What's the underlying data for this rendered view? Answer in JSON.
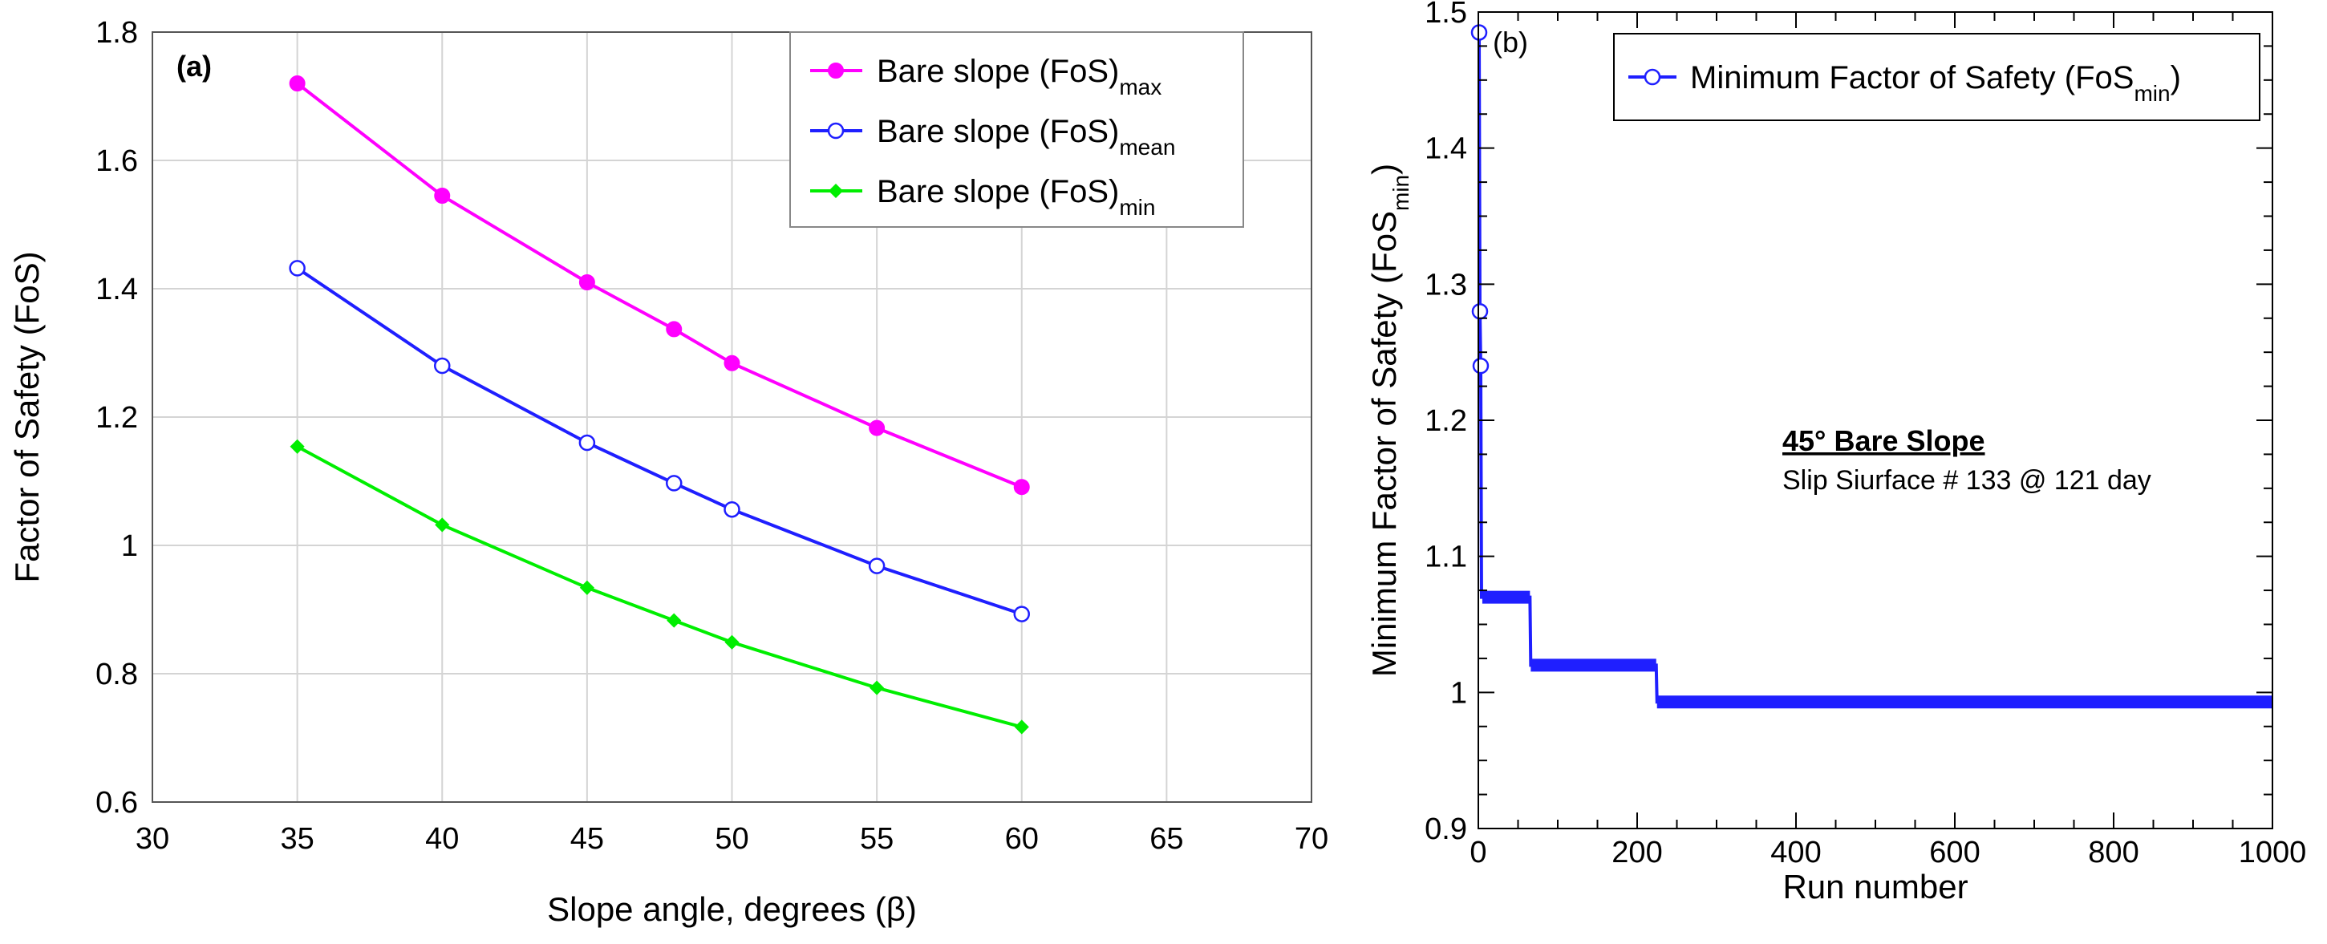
{
  "chart_data": [
    {
      "type": "line",
      "panel_label": "(a)",
      "xlabel": "Slope angle, degrees (β)",
      "ylabel": "Factor of Safety (FoS)",
      "xlim": [
        30,
        70
      ],
      "ylim": [
        0.6,
        1.8
      ],
      "x_ticks": [
        "30",
        "35",
        "40",
        "45",
        "50",
        "55",
        "60",
        "65",
        "70"
      ],
      "y_ticks": [
        "0.6",
        "0.8",
        "1",
        "1.2",
        "1.4",
        "1.6",
        "1.8"
      ],
      "grid": true,
      "legend_position": "top-right",
      "x": [
        35,
        40,
        45,
        48,
        50,
        55,
        60
      ],
      "series": [
        {
          "name": "Bare slope (FoS)",
          "subscript": "max",
          "color": "#ff00ff",
          "marker": "filled-circle",
          "values": [
            1.72,
            1.545,
            1.41,
            1.337,
            1.284,
            1.183,
            1.091
          ]
        },
        {
          "name": "Bare slope (FoS)",
          "subscript": "mean",
          "color": "#1f1fff",
          "marker": "open-circle",
          "values": [
            1.432,
            1.28,
            1.16,
            1.097,
            1.056,
            0.968,
            0.893
          ]
        },
        {
          "name": "Bare slope (FoS)",
          "subscript": "min",
          "color": "#00ee00",
          "marker": "diamond",
          "values": [
            1.154,
            1.032,
            0.934,
            0.883,
            0.849,
            0.778,
            0.717
          ]
        }
      ]
    },
    {
      "type": "line",
      "panel_label": "(b)",
      "xlabel": "Run number",
      "ylabel_main": "Minimum Factor of Safety (FoS",
      "ylabel_sub": "min",
      "ylabel_end": ")",
      "xlim": [
        0,
        1000
      ],
      "ylim": [
        0.9,
        1.5
      ],
      "x_ticks": [
        "0",
        "200",
        "400",
        "600",
        "800",
        "1000"
      ],
      "y_ticks": [
        "0.9",
        "1",
        "1.1",
        "1.2",
        "1.3",
        "1.4",
        "1.5"
      ],
      "grid": false,
      "legend_position": "top-right",
      "series": [
        {
          "name": "Minimum Factor of Safety (FoS",
          "subscript": "min",
          "name_end": ")",
          "color": "#1f1fff",
          "marker": "open-circle",
          "x": [
            1,
            2,
            3,
            4,
            5,
            65,
            66,
            224,
            225,
            1000
          ],
          "values": [
            1.485,
            1.28,
            1.24,
            1.07,
            1.07,
            1.07,
            1.02,
            1.02,
            0.993,
            0.993
          ]
        }
      ],
      "annotation": {
        "title": "45° Bare Slope",
        "subtitle": "Slip Siurface # 133 @ 121 day"
      }
    }
  ]
}
